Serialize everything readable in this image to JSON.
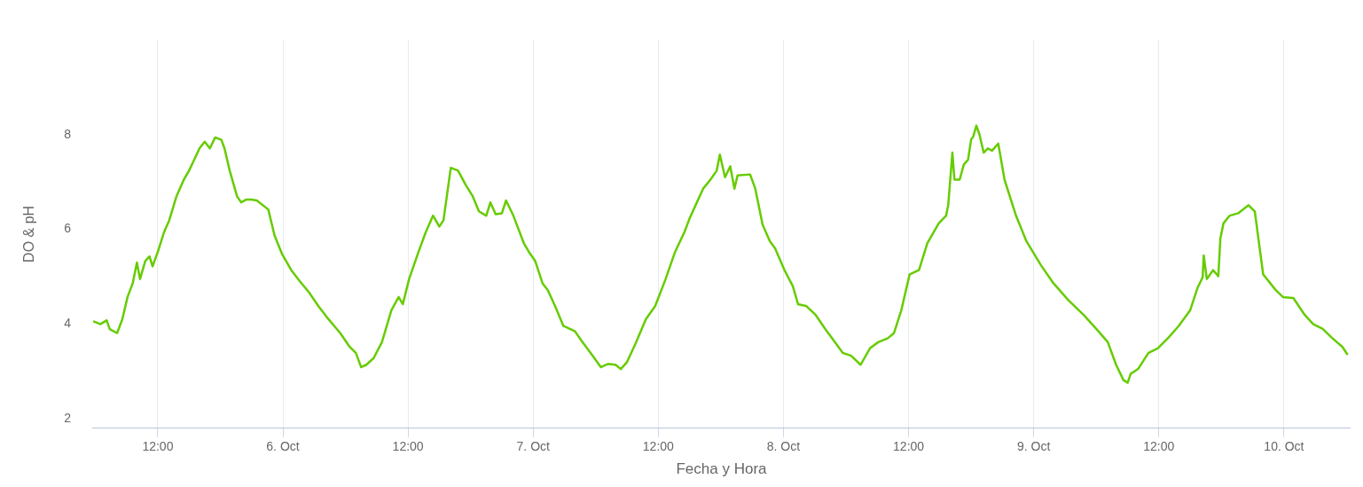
{
  "chart_data": {
    "type": "line",
    "xlabel": "Fecha y Hora",
    "ylabel": "DO & pH",
    "grid": "x",
    "legend": false,
    "marker": "none",
    "line_style": "solid",
    "xlim": [
      "--10-05T05:48",
      "--10-10T06:18"
    ],
    "ylim": [
      1.8,
      10
    ],
    "yticks": [
      2,
      4,
      6,
      8
    ],
    "xticks": [
      {
        "value": "--10-05T12:00",
        "label": "12:00"
      },
      {
        "value": "--10-06",
        "label": "6. Oct"
      },
      {
        "value": "--10-06T12:00",
        "label": "12:00"
      },
      {
        "value": "--10-07",
        "label": "7. Oct"
      },
      {
        "value": "--10-07T12:00",
        "label": "12:00"
      },
      {
        "value": "--10-08",
        "label": "8. Oct"
      },
      {
        "value": "--10-08T12:00",
        "label": "12:00"
      },
      {
        "value": "--10-09",
        "label": "9. Oct"
      },
      {
        "value": "--10-09T12:00",
        "label": "12:00"
      },
      {
        "value": "--10-10",
        "label": "10. Oct"
      }
    ],
    "series": [
      {
        "color": "#66cc00",
        "x": [
          "--10-05T05:48",
          "--10-05T06:30",
          "--10-05T07:06",
          "--10-05T07:24",
          "--10-05T08:06",
          "--10-05T08:36",
          "--10-05T09:06",
          "--10-05T09:36",
          "--10-05T10:00",
          "--10-05T10:18",
          "--10-05T10:48",
          "--10-05T11:12",
          "--10-05T11:30",
          "--10-05T12:00",
          "--10-05T12:36",
          "--10-05T13:06",
          "--10-05T13:48",
          "--10-05T14:30",
          "--10-05T15:00",
          "--10-05T15:30",
          "--10-05T16:00",
          "--10-05T16:30",
          "--10-05T17:00",
          "--10-05T17:30",
          "--10-05T18:06",
          "--10-05T18:24",
          "--10-05T18:54",
          "--10-05T19:36",
          "--10-05T20:00",
          "--10-05T20:30",
          "--10-05T21:00",
          "--10-05T21:30",
          "--10-05T22:36",
          "--10-05T23:12",
          "--10-05T23:54",
          "--10-06T00:48",
          "--10-06T01:36",
          "--10-06T02:30",
          "--10-06T03:24",
          "--10-06T04:12",
          "--10-06T05:30",
          "--10-06T06:24",
          "--10-06T07:00",
          "--10-06T07:30",
          "--10-06T08:00",
          "--10-06T08:42",
          "--10-06T09:30",
          "--10-06T10:24",
          "--10-06T11:06",
          "--10-06T11:30",
          "--10-06T12:06",
          "--10-06T13:00",
          "--10-06T13:42",
          "--10-06T14:24",
          "--10-06T15:00",
          "--10-06T15:24",
          "--10-06T16:06",
          "--10-06T16:48",
          "--10-06T17:30",
          "--10-06T18:12",
          "--10-06T18:48",
          "--10-06T19:30",
          "--10-06T19:54",
          "--10-06T20:24",
          "--10-06T21:00",
          "--10-06T21:24",
          "--10-06T22:06",
          "--10-06T23:06",
          "--10-06T23:36",
          "--10-07T00:12",
          "--10-07T00:54",
          "--10-07T01:24",
          "--10-07T02:06",
          "--10-07T02:54",
          "--10-07T04:00",
          "--10-07T04:36",
          "--10-07T05:42",
          "--10-07T06:30",
          "--10-07T07:12",
          "--10-07T07:54",
          "--10-07T08:24",
          "--10-07T09:00",
          "--10-07T09:48",
          "--10-07T10:48",
          "--10-07T11:42",
          "--10-07T12:42",
          "--10-07T13:36",
          "--10-07T14:30",
          "--10-07T15:00",
          "--10-07T15:42",
          "--10-07T16:18",
          "--10-07T17:00",
          "--10-07T17:36",
          "--10-07T17:54",
          "--10-07T18:24",
          "--10-07T18:54",
          "--10-07T19:18",
          "--10-07T19:36",
          "--10-07T20:48",
          "--10-07T21:18",
          "--10-07T22:00",
          "--10-07T22:42",
          "--10-07T23:12",
          "--10-08T00:06",
          "--10-08T00:54",
          "--10-08T01:24",
          "--10-08T02:12",
          "--10-08T03:06",
          "--10-08T04:00",
          "--10-08T04:48",
          "--10-08T05:42",
          "--10-08T06:30",
          "--10-08T07:24",
          "--10-08T08:18",
          "--10-08T09:06",
          "--10-08T10:00",
          "--10-08T10:36",
          "--10-08T11:18",
          "--10-08T12:06",
          "--10-08T13:00",
          "--10-08T13:48",
          "--10-08T14:54",
          "--10-08T15:36",
          "--10-08T15:48",
          "--10-08T16:12",
          "--10-08T16:24",
          "--10-08T16:54",
          "--10-08T17:18",
          "--10-08T17:42",
          "--10-08T18:00",
          "--10-08T18:12",
          "--10-08T18:30",
          "--10-08T18:48",
          "--10-08T19:12",
          "--10-08T19:36",
          "--10-08T20:00",
          "--10-08T20:36",
          "--10-08T21:12",
          "--10-08T22:18",
          "--10-08T23:18",
          "--10-09T00:42",
          "--10-09T01:54",
          "--10-09T03:18",
          "--10-09T04:48",
          "--10-09T06:12",
          "--10-09T07:06",
          "--10-09T07:54",
          "--10-09T08:36",
          "--10-09T09:00",
          "--10-09T09:18",
          "--10-09T10:00",
          "--10-09T11:00",
          "--10-09T11:54",
          "--10-09T12:54",
          "--10-09T13:54",
          "--10-09T15:00",
          "--10-09T15:42",
          "--10-09T16:12",
          "--10-09T16:18",
          "--10-09T16:36",
          "--10-09T17:12",
          "--10-09T17:42",
          "--10-09T17:54",
          "--10-09T18:12",
          "--10-09T18:48",
          "--10-09T19:36",
          "--10-09T20:36",
          "--10-09T21:12",
          "--10-09T22:00",
          "--10-09T23:12",
          "--10-09T23:54",
          "--10-10T00:54",
          "--10-10T02:00",
          "--10-10T02:48",
          "--10-10T03:42",
          "--10-10T04:36",
          "--10-10T05:36",
          "--10-10T06:06"
        ],
        "values": [
          4.06,
          4.0,
          4.08,
          3.89,
          3.81,
          4.1,
          4.57,
          4.86,
          5.3,
          4.95,
          5.33,
          5.43,
          5.22,
          5.52,
          5.94,
          6.19,
          6.7,
          7.05,
          7.24,
          7.47,
          7.71,
          7.85,
          7.71,
          7.94,
          7.89,
          7.71,
          7.24,
          6.7,
          6.57,
          6.63,
          6.63,
          6.61,
          6.42,
          5.87,
          5.49,
          5.14,
          4.91,
          4.67,
          4.38,
          4.15,
          3.81,
          3.52,
          3.39,
          3.09,
          3.14,
          3.28,
          3.62,
          4.29,
          4.57,
          4.42,
          4.95,
          5.52,
          5.94,
          6.29,
          6.06,
          6.19,
          7.3,
          7.24,
          6.95,
          6.7,
          6.38,
          6.29,
          6.57,
          6.32,
          6.34,
          6.61,
          6.29,
          5.71,
          5.52,
          5.33,
          4.86,
          4.72,
          4.38,
          3.96,
          3.85,
          3.66,
          3.33,
          3.09,
          3.16,
          3.14,
          3.05,
          3.2,
          3.58,
          4.1,
          4.38,
          4.95,
          5.52,
          5.94,
          6.23,
          6.57,
          6.86,
          7.05,
          7.24,
          7.58,
          7.1,
          7.33,
          6.86,
          7.14,
          7.16,
          6.86,
          6.1,
          5.75,
          5.6,
          5.14,
          4.8,
          4.42,
          4.38,
          4.19,
          3.9,
          3.66,
          3.39,
          3.33,
          3.14,
          3.49,
          3.62,
          3.7,
          3.81,
          4.29,
          5.05,
          5.14,
          5.71,
          6.13,
          6.29,
          6.51,
          7.62,
          7.05,
          7.05,
          7.37,
          7.47,
          7.9,
          7.96,
          8.19,
          8.0,
          7.62,
          7.71,
          7.66,
          7.81,
          7.05,
          6.29,
          5.75,
          5.24,
          4.86,
          4.51,
          4.19,
          3.85,
          3.62,
          3.14,
          2.82,
          2.76,
          2.95,
          3.05,
          3.39,
          3.49,
          3.71,
          3.96,
          4.29,
          4.76,
          4.99,
          5.45,
          4.95,
          5.14,
          5.01,
          5.81,
          6.13,
          6.29,
          6.34,
          6.51,
          6.38,
          5.05,
          4.72,
          4.57,
          4.55,
          4.19,
          4.0,
          3.9,
          3.71,
          3.52,
          3.35
        ]
      }
    ]
  }
}
